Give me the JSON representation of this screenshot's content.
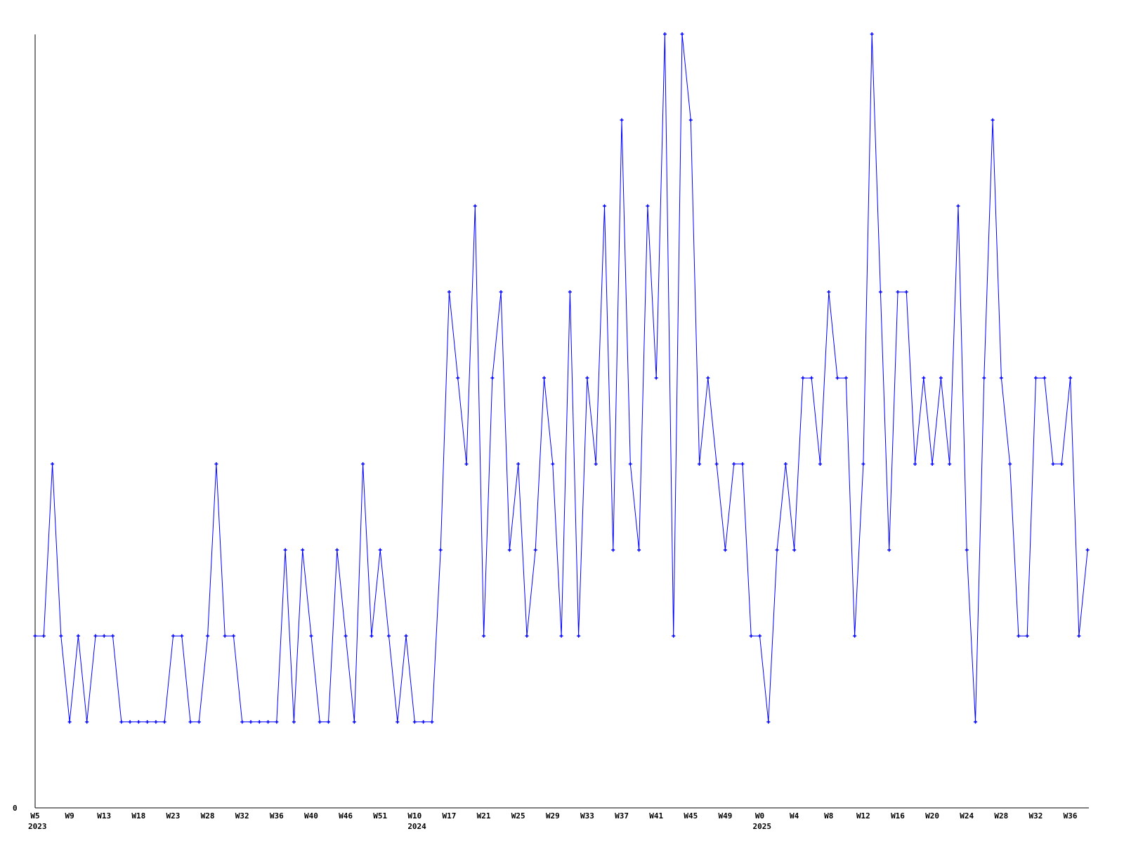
{
  "chart_data": {
    "type": "line",
    "title": "",
    "xlabel": "",
    "ylabel": "",
    "ylim": [
      0,
      9
    ],
    "y_tick_labels": [
      "0"
    ],
    "grid": false,
    "legend": "none",
    "line_color": "#0000ff",
    "axis_color": "#000000",
    "x_tick_labels": [
      "W5",
      "W9",
      "W13",
      "W18",
      "W23",
      "W28",
      "W32",
      "W36",
      "W40",
      "W46",
      "W51",
      "W10",
      "W17",
      "W21",
      "W25",
      "W29",
      "W33",
      "W37",
      "W41",
      "W45",
      "W49",
      "W0",
      "W4",
      "W8",
      "W12",
      "W16",
      "W20",
      "W24",
      "W28",
      "W32",
      "W36"
    ],
    "x_tick_every": 4,
    "year_labels": [
      {
        "label": "2023",
        "at_tick": "W5"
      },
      {
        "label": "2024",
        "at_tick": "W10"
      },
      {
        "label": "2025",
        "at_tick": "W0"
      }
    ],
    "series": [
      {
        "values": [
          2,
          2,
          4,
          2,
          1,
          2,
          1,
          2,
          2,
          2,
          1,
          1,
          1,
          1,
          1,
          1,
          2,
          2,
          1,
          1,
          2,
          4,
          2,
          2,
          1,
          1,
          1,
          1,
          1,
          3,
          1,
          3,
          2,
          1,
          1,
          3,
          2,
          1,
          4,
          2,
          3,
          2,
          1,
          2,
          1,
          1,
          1,
          3,
          6,
          5,
          4,
          7,
          2,
          5,
          6,
          3,
          4,
          2,
          3,
          5,
          4,
          2,
          6,
          2,
          5,
          4,
          7,
          3,
          8,
          4,
          3,
          7,
          5,
          9,
          2,
          9,
          8,
          4,
          5,
          4,
          3,
          4,
          4,
          2,
          2,
          1,
          3,
          4,
          3,
          5,
          5,
          4,
          6,
          5,
          5,
          2,
          4,
          9,
          6,
          3,
          6,
          6,
          4,
          5,
          4,
          5,
          4,
          7,
          3,
          1,
          5,
          8,
          5,
          4,
          2,
          2,
          5,
          5,
          4,
          4,
          5,
          2,
          3
        ]
      }
    ]
  }
}
